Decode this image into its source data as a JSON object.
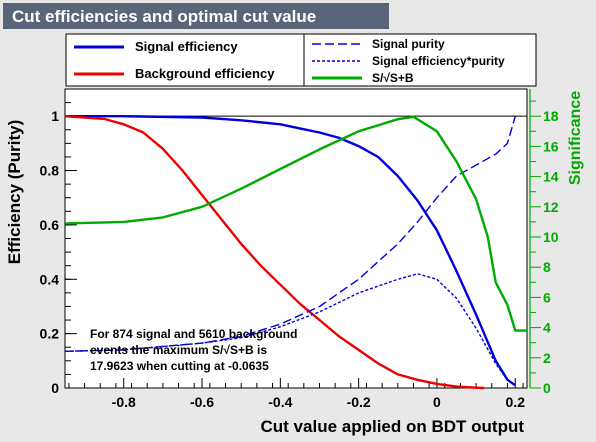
{
  "chart_data": {
    "type": "line",
    "title": "Cut efficiencies and optimal cut value",
    "xlabel": "Cut value applied on BDT output",
    "ylabel": "Efficiency (Purity)",
    "y2label": "Significance",
    "xlim": [
      -0.95,
      0.23
    ],
    "ylim": [
      0,
      1.1
    ],
    "y2lim": [
      0,
      19.8
    ],
    "x_ticks": [
      -0.8,
      -0.6,
      -0.4,
      -0.2,
      0,
      0.2
    ],
    "x_tick_labels": [
      "-0.8",
      "-0.6",
      "-0.4",
      "-0.2",
      "0",
      "0.2"
    ],
    "y_ticks": [
      0,
      0.2,
      0.4,
      0.6,
      0.8,
      1
    ],
    "y_tick_labels": [
      "0",
      "0.2",
      "0.4",
      "0.6",
      "0.8",
      "1"
    ],
    "y2_ticks": [
      0,
      2,
      4,
      6,
      8,
      10,
      12,
      14,
      16,
      18
    ],
    "y2_tick_labels": [
      "0",
      "2",
      "4",
      "6",
      "8",
      "10",
      "12",
      "14",
      "16",
      "18"
    ],
    "grid": false,
    "legend_placement": "top",
    "reference_line_y": 1,
    "colors": {
      "signal": "#0000dd",
      "background": "#ee0000",
      "significance": "#00aa00",
      "title_bg": "#5a6577"
    },
    "annotation": [
      "For 874 signal and 5610 background",
      "events the maximum S/√S+B is",
      "17.9623 when cutting at -0.0635"
    ],
    "series": [
      {
        "name": "Signal efficiency",
        "axis": "left",
        "style": "solid",
        "color": "#0000dd",
        "x": [
          -0.95,
          -0.8,
          -0.6,
          -0.5,
          -0.4,
          -0.35,
          -0.3,
          -0.25,
          -0.2,
          -0.15,
          -0.1,
          -0.05,
          0,
          0.05,
          0.1,
          0.15,
          0.18,
          0.2
        ],
        "y": [
          1.0,
          1.0,
          0.995,
          0.985,
          0.97,
          0.955,
          0.94,
          0.92,
          0.89,
          0.85,
          0.78,
          0.69,
          0.58,
          0.43,
          0.27,
          0.1,
          0.03,
          0.01
        ]
      },
      {
        "name": "Background efficiency",
        "axis": "left",
        "style": "solid",
        "color": "#ee0000",
        "x": [
          -0.95,
          -0.85,
          -0.8,
          -0.75,
          -0.7,
          -0.65,
          -0.6,
          -0.55,
          -0.5,
          -0.45,
          -0.4,
          -0.35,
          -0.3,
          -0.25,
          -0.2,
          -0.15,
          -0.1,
          -0.05,
          0,
          0.05,
          0.1,
          0.12
        ],
        "y": [
          1.0,
          0.99,
          0.97,
          0.94,
          0.88,
          0.8,
          0.71,
          0.62,
          0.53,
          0.45,
          0.38,
          0.31,
          0.25,
          0.19,
          0.14,
          0.09,
          0.05,
          0.03,
          0.015,
          0.005,
          0.001,
          0.0
        ]
      },
      {
        "name": "Signal purity",
        "axis": "left",
        "style": "dashed",
        "color": "#0000dd",
        "x": [
          -0.95,
          -0.8,
          -0.6,
          -0.5,
          -0.4,
          -0.3,
          -0.2,
          -0.1,
          -0.05,
          0,
          0.05,
          0.1,
          0.15,
          0.18,
          0.2
        ],
        "y": [
          0.135,
          0.14,
          0.165,
          0.19,
          0.235,
          0.3,
          0.4,
          0.53,
          0.61,
          0.7,
          0.78,
          0.82,
          0.86,
          0.9,
          1.0
        ]
      },
      {
        "name": "Signal efficiency*purity",
        "axis": "left",
        "style": "dotted",
        "color": "#0000dd",
        "x": [
          -0.95,
          -0.8,
          -0.6,
          -0.5,
          -0.4,
          -0.3,
          -0.2,
          -0.1,
          -0.05,
          0,
          0.05,
          0.1,
          0.15,
          0.18,
          0.2
        ],
        "y": [
          0.135,
          0.14,
          0.165,
          0.185,
          0.225,
          0.28,
          0.35,
          0.4,
          0.42,
          0.4,
          0.33,
          0.22,
          0.09,
          0.03,
          0.01
        ]
      },
      {
        "name": "S/√S+B",
        "axis": "right",
        "style": "solid",
        "color": "#00aa00",
        "x": [
          -0.95,
          -0.8,
          -0.7,
          -0.6,
          -0.5,
          -0.4,
          -0.3,
          -0.2,
          -0.1,
          -0.06,
          0,
          0.05,
          0.1,
          0.13,
          0.15,
          0.18,
          0.2,
          0.23
        ],
        "y": [
          10.9,
          11.0,
          11.3,
          12.0,
          13.2,
          14.5,
          15.8,
          17.0,
          17.8,
          17.96,
          17.0,
          15.0,
          12.5,
          10.0,
          7.0,
          5.5,
          3.8,
          3.8
        ]
      }
    ]
  }
}
